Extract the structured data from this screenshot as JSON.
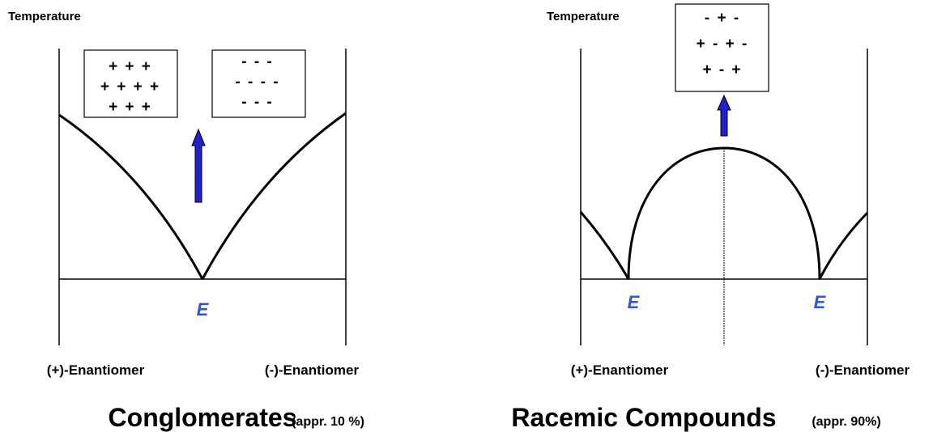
{
  "panels": [
    {
      "axis_label": "Temperature",
      "boxes": [
        [
          "+ + +",
          "+ + + +",
          "+ + +"
        ],
        [
          "- - -",
          "- - - -",
          "- - -"
        ]
      ],
      "eutectics": [
        "E"
      ],
      "x_left": "(+)-Enantiomer",
      "x_right": "(-)-Enantiomer",
      "title": "Conglomerates",
      "note": "(appr. 10 %)"
    },
    {
      "axis_label": "Temperature",
      "boxes": [
        [
          "- + -",
          "+ - + -",
          "+ - +"
        ]
      ],
      "eutectics": [
        "E",
        "E"
      ],
      "x_left": "(+)-Enantiomer",
      "x_right": "(-)-Enantiomer",
      "title": "Racemic Compounds",
      "note": "(appr. 90%)"
    }
  ]
}
